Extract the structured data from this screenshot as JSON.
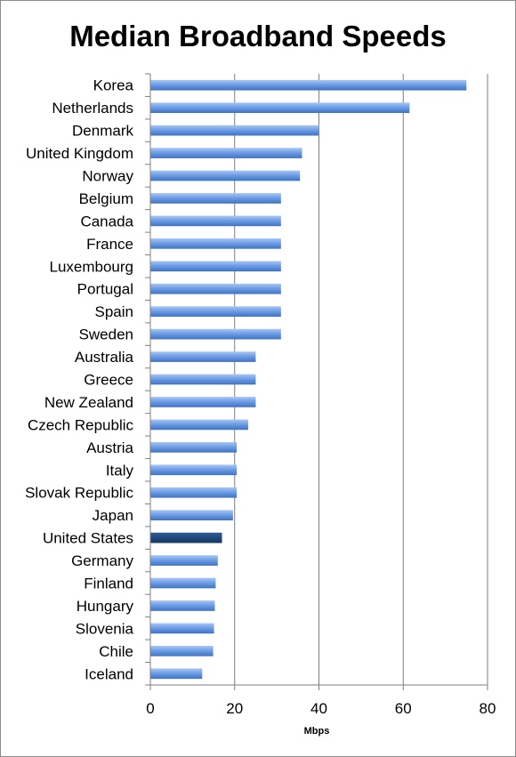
{
  "chart_data": {
    "type": "bar",
    "orientation": "horizontal",
    "title": "Median Broadband Speeds",
    "xlabel": "Mbps",
    "ylabel": "",
    "xlim": [
      0,
      80
    ],
    "xticks": [
      "0",
      "20",
      "40",
      "60",
      "80"
    ],
    "grid": true,
    "legend": "none",
    "categories": [
      "Korea",
      "Netherlands",
      "Denmark",
      "United Kingdom",
      "Norway",
      "Belgium",
      "Canada",
      "France",
      "Luxembourg",
      "Portugal",
      "Spain",
      "Sweden",
      "Australia",
      "Greece",
      "New Zealand",
      "Czech Republic",
      "Austria",
      "Italy",
      "Slovak Republic",
      "Japan",
      "United States",
      "Germany",
      "Finland",
      "Hungary",
      "Slovenia",
      "Chile",
      "Iceland"
    ],
    "values": [
      75,
      61.5,
      40,
      36,
      35.5,
      31,
      31,
      31,
      31,
      31,
      31,
      31,
      25,
      25,
      25,
      23.2,
      20.5,
      20.5,
      20.5,
      19.6,
      17,
      16,
      15.5,
      15.3,
      15.1,
      14.9,
      12.3
    ],
    "highlight": "United States",
    "colors": {
      "bar": "#5b8fdb",
      "bar_highlight": "#1f4a82",
      "gridline": "#7f7f7f",
      "axis": "#7f7f7f"
    }
  }
}
